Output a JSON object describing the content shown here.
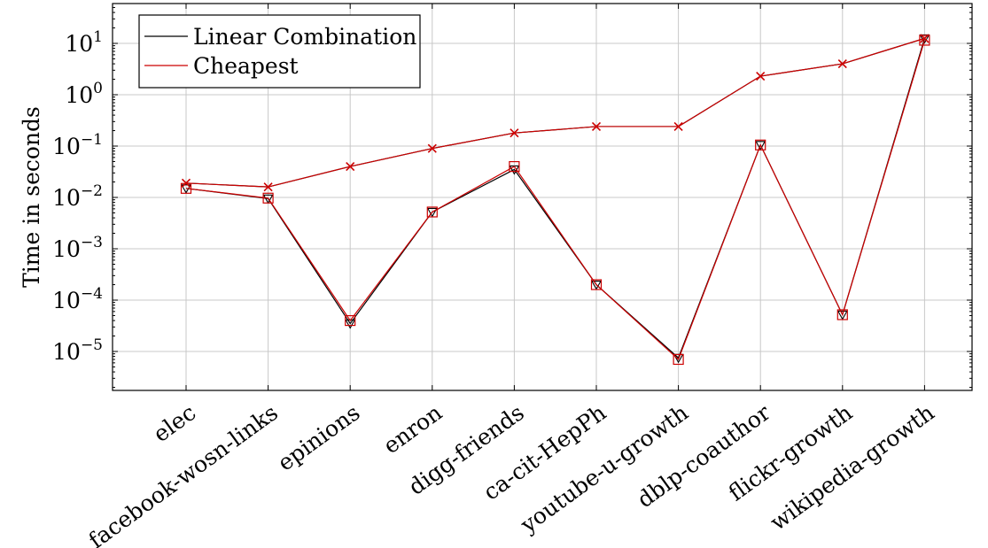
{
  "chart_data": {
    "type": "line",
    "title": "",
    "xlabel": "",
    "ylabel": "Time in seconds",
    "yscale": "log",
    "ylim": [
      1e-06,
      50
    ],
    "y_tick_exponents": [
      -5,
      -4,
      -3,
      -2,
      -1,
      0,
      1
    ],
    "grid": true,
    "legend_position": "top-left",
    "categories": [
      "elec",
      "facebook-wosn-links",
      "epinions",
      "enron",
      "digg-friends",
      "ca-cit-HepPh",
      "youtube-u-growth",
      "dblp-coauthor",
      "flickr-growth",
      "wikipedia-growth"
    ],
    "series": [
      {
        "name": "Linear Combination",
        "color": "#000000",
        "marker": "triangle-down",
        "values": [
          0.015,
          0.0095,
          3.5e-05,
          0.0052,
          0.035,
          0.0002,
          7.5e-06,
          0.105,
          5.2e-05,
          12.5
        ]
      },
      {
        "name": "Cheapest",
        "color": "#cc0000",
        "marker": "square",
        "values": [
          0.015,
          0.0097,
          4e-05,
          0.0052,
          0.04,
          0.0002,
          7e-06,
          0.105,
          5.2e-05,
          11.5
        ]
      },
      {
        "name": "",
        "color": "#000000",
        "marker": "none",
        "values": [
          0.019,
          0.016,
          0.04,
          0.09,
          0.18,
          0.24,
          0.24,
          2.3,
          4.0,
          12.5
        ]
      },
      {
        "name": "",
        "color": "#cc0000",
        "marker": "cross",
        "values": [
          0.019,
          0.016,
          0.04,
          0.09,
          0.18,
          0.24,
          0.24,
          2.3,
          4.0,
          12.5
        ]
      }
    ]
  }
}
